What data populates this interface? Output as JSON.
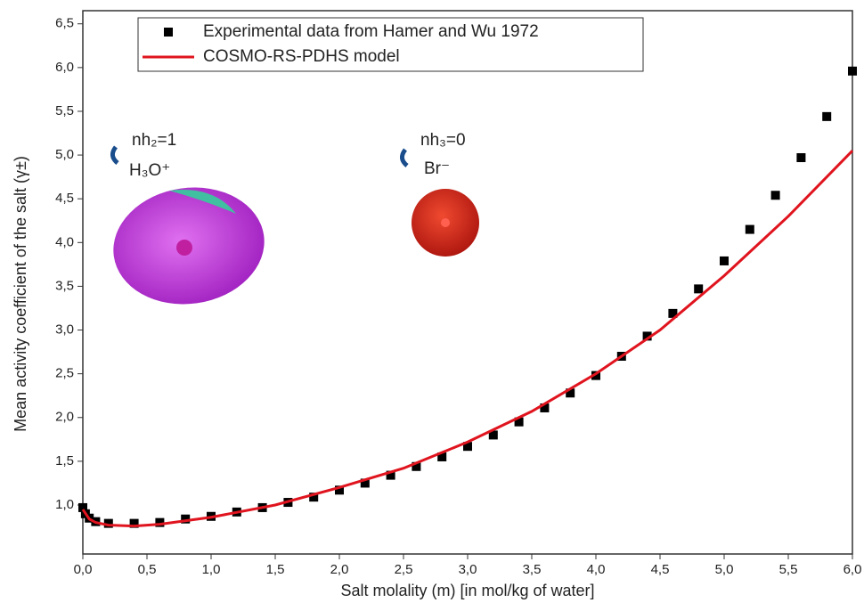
{
  "chart_data": {
    "type": "scatter",
    "xlabel": "Salt molality (m) [in mol/kg of water]",
    "ylabel": "Mean activity coefficient of the salt (γ±)",
    "xlim": [
      0,
      6.0
    ],
    "ylim": [
      0.44,
      6.65
    ],
    "xticks": [
      {
        "value": 0,
        "label": "0,0"
      },
      {
        "value": 0.5,
        "label": "0,5"
      },
      {
        "value": 1,
        "label": "1,0"
      },
      {
        "value": 1.5,
        "label": "1,5"
      },
      {
        "value": 2,
        "label": "2,0"
      },
      {
        "value": 2.5,
        "label": "2,5"
      },
      {
        "value": 3,
        "label": "3,0"
      },
      {
        "value": 3.5,
        "label": "3,5"
      },
      {
        "value": 4,
        "label": "4,0"
      },
      {
        "value": 4.5,
        "label": "4,5"
      },
      {
        "value": 5,
        "label": "5,0"
      },
      {
        "value": 5.5,
        "label": "5,5"
      },
      {
        "value": 6,
        "label": "6,0"
      }
    ],
    "yticks": [
      {
        "value": 1,
        "label": "1,0"
      },
      {
        "value": 1.5,
        "label": "1,5"
      },
      {
        "value": 2,
        "label": "2,0"
      },
      {
        "value": 2.5,
        "label": "2,5"
      },
      {
        "value": 3,
        "label": "3,0"
      },
      {
        "value": 3.5,
        "label": "3,5"
      },
      {
        "value": 4,
        "label": "4,0"
      },
      {
        "value": 4.5,
        "label": "4,5"
      },
      {
        "value": 5,
        "label": "5,0"
      },
      {
        "value": 5.5,
        "label": "5,5"
      },
      {
        "value": 6,
        "label": "6,0"
      },
      {
        "value": 6.5,
        "label": "6,5"
      }
    ],
    "grid": false,
    "legend": "top",
    "series": [
      {
        "name": "Experimental data from Hamer and Wu 1972",
        "type": "scatter",
        "color": "#000000",
        "x": [
          0.0,
          0.02,
          0.05,
          0.1,
          0.2,
          0.4,
          0.6,
          0.8,
          1.0,
          1.2,
          1.4,
          1.6,
          1.8,
          2.0,
          2.2,
          2.4,
          2.6,
          2.8,
          3.0,
          3.2,
          3.4,
          3.6,
          3.8,
          4.0,
          4.2,
          4.4,
          4.6,
          4.8,
          5.0,
          5.2,
          5.4,
          5.6,
          5.8,
          6.0
        ],
        "values": [
          0.97,
          0.9,
          0.85,
          0.81,
          0.79,
          0.79,
          0.8,
          0.84,
          0.87,
          0.92,
          0.97,
          1.03,
          1.09,
          1.17,
          1.25,
          1.34,
          1.44,
          1.55,
          1.67,
          1.8,
          1.95,
          2.11,
          2.28,
          2.48,
          2.7,
          2.93,
          3.19,
          3.47,
          3.79,
          4.15,
          4.54,
          4.97,
          5.44,
          5.96
        ]
      },
      {
        "name": "COSMO-RS-PDHS model",
        "type": "line",
        "color": "#e0141e",
        "x": [
          0.0,
          0.05,
          0.1,
          0.2,
          0.4,
          0.6,
          1.0,
          1.5,
          2.0,
          2.5,
          3.0,
          3.5,
          4.0,
          4.5,
          5.0,
          5.5,
          6.0
        ],
        "values": [
          0.95,
          0.84,
          0.8,
          0.77,
          0.76,
          0.78,
          0.86,
          1.0,
          1.2,
          1.42,
          1.72,
          2.07,
          2.5,
          3.0,
          3.62,
          4.3,
          5.05
        ]
      }
    ],
    "annotations": [
      {
        "text": "nh₂=1",
        "sub": "H₃O⁺"
      },
      {
        "text": "nh₃=0",
        "sub": "Br⁻"
      }
    ]
  }
}
